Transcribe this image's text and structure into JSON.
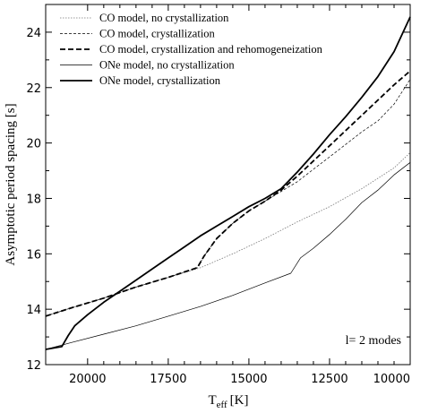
{
  "chart_data": {
    "type": "line",
    "xlabel": "T",
    "xlabel_sub": "eff",
    "xlabel_unit": "[K]",
    "ylabel": "Asymptotic period spacing [s]",
    "xlim": [
      21300,
      10000
    ],
    "ylim": [
      12,
      25
    ],
    "x_reversed": true,
    "xticks": [
      20000,
      17500,
      15000,
      12500,
      10000
    ],
    "yticks": [
      12,
      14,
      16,
      18,
      20,
      22,
      24
    ],
    "legend_position": "top-left",
    "annotation": "l= 2 modes",
    "series": [
      {
        "name": "CO model, no crystallization",
        "style": "dotted",
        "x": [
          21300,
          20500,
          19500,
          18500,
          17500,
          16500,
          15500,
          14500,
          13500,
          12500,
          11500,
          10500,
          10000
        ],
        "y": [
          13.75,
          14.05,
          14.4,
          14.8,
          15.15,
          15.5,
          16.0,
          16.55,
          17.15,
          17.7,
          18.35,
          19.1,
          19.65
        ]
      },
      {
        "name": "CO model, crystallization",
        "style": "thin-dashed",
        "x": [
          21300,
          20500,
          19500,
          18500,
          17500,
          16600,
          16400,
          16000,
          15500,
          15000,
          14500,
          14000,
          13500,
          13000,
          12500,
          12000,
          11500,
          11000,
          10500,
          10000
        ],
        "y": [
          13.75,
          14.05,
          14.4,
          14.8,
          15.15,
          15.5,
          15.9,
          16.55,
          17.1,
          17.55,
          17.9,
          18.25,
          18.6,
          19.05,
          19.5,
          19.95,
          20.4,
          20.8,
          21.4,
          22.3
        ]
      },
      {
        "name": "CO model, crystallization and rehomogeneization",
        "style": "bold-dashed",
        "x": [
          21300,
          20500,
          19500,
          18500,
          17500,
          16600,
          16400,
          16000,
          15500,
          15000,
          14500,
          14000,
          13500,
          13000,
          12500,
          12000,
          11500,
          11000,
          10500,
          10000
        ],
        "y": [
          13.75,
          14.05,
          14.4,
          14.8,
          15.15,
          15.5,
          15.9,
          16.55,
          17.1,
          17.55,
          17.9,
          18.3,
          18.8,
          19.35,
          19.9,
          20.45,
          21.0,
          21.55,
          22.1,
          22.6
        ]
      },
      {
        "name": "ONe model, no crystallization",
        "style": "thin-solid",
        "x": [
          21300,
          20500,
          19500,
          18500,
          17500,
          16500,
          15500,
          14500,
          13700,
          13400,
          13000,
          12500,
          12000,
          11500,
          11000,
          10500,
          10000
        ],
        "y": [
          12.55,
          12.8,
          13.1,
          13.4,
          13.75,
          14.1,
          14.5,
          14.95,
          15.3,
          15.85,
          16.2,
          16.7,
          17.25,
          17.85,
          18.3,
          18.85,
          19.3
        ]
      },
      {
        "name": "ONe model, crystallization",
        "style": "bold-solid",
        "x": [
          21300,
          20800,
          20600,
          20400,
          20000,
          19500,
          19000,
          18500,
          18000,
          17500,
          17000,
          16500,
          16000,
          15500,
          15000,
          14500,
          14000,
          13500,
          13000,
          12500,
          12000,
          11500,
          11000,
          10500,
          10000
        ],
        "y": [
          12.55,
          12.65,
          13.05,
          13.4,
          13.8,
          14.25,
          14.65,
          15.05,
          15.45,
          15.85,
          16.25,
          16.65,
          17.0,
          17.35,
          17.7,
          18.0,
          18.35,
          18.95,
          19.6,
          20.3,
          20.95,
          21.65,
          22.4,
          23.3,
          24.55
        ]
      }
    ]
  }
}
